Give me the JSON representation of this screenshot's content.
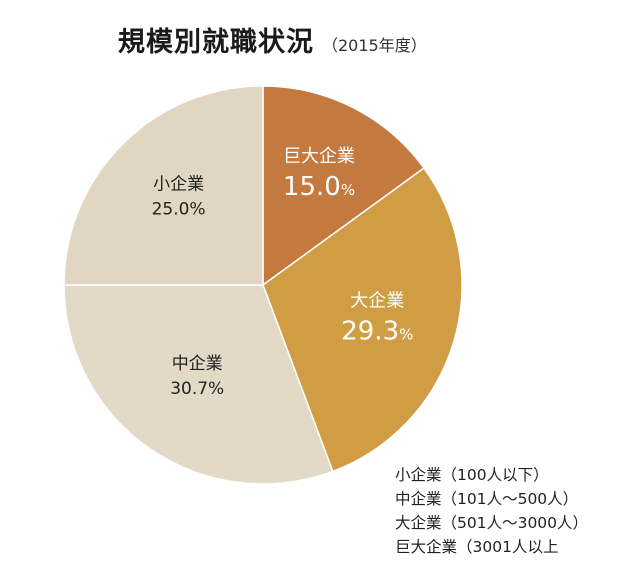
{
  "chart_data": {
    "type": "pie",
    "title": "規模別就職状況",
    "subtitle": "（2015年度）",
    "slices": [
      {
        "label": "巨大企業",
        "value": 15.0,
        "display": "15.0",
        "unit": "%",
        "color": "#c47a3e",
        "text_color": "#ffffff"
      },
      {
        "label": "大企業",
        "value": 29.3,
        "display": "29.3",
        "unit": "%",
        "color": "#d09c44",
        "text_color": "#ffffff"
      },
      {
        "label": "中企業",
        "value": 30.7,
        "display": "30.7%",
        "unit": "",
        "color": "#e2d9c6",
        "text_color": "#222222"
      },
      {
        "label": "小企業",
        "value": 25.0,
        "display": "25.0%",
        "unit": "",
        "color": "#e0d6c2",
        "text_color": "#222222"
      }
    ],
    "notes": [
      "小企業（100人以下）",
      "中企業（101人～500人）",
      "大企業（501人～3000人）",
      "巨大企業（3001人以上"
    ]
  }
}
